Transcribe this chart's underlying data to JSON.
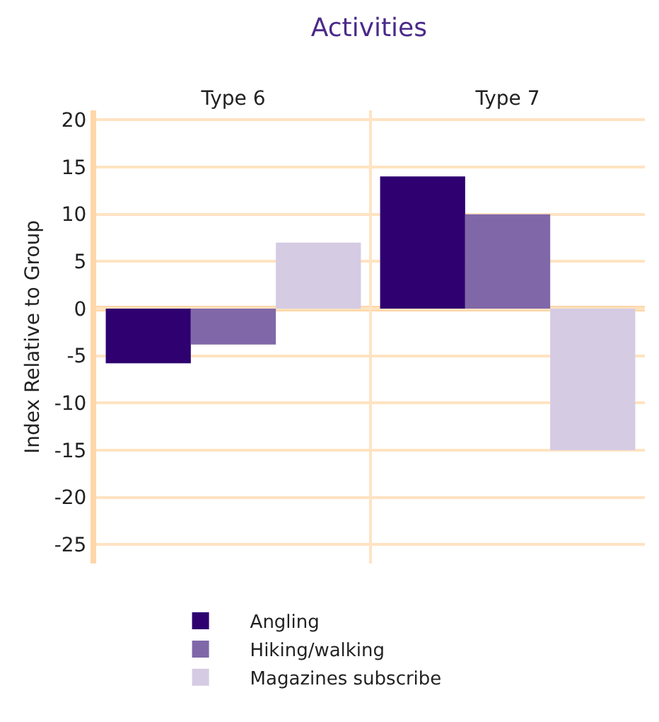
{
  "chart_data": {
    "type": "bar",
    "title": "Activities",
    "ylabel": "Index Relative to Group",
    "categories": [
      "Type 6",
      "Type 7"
    ],
    "series": [
      {
        "name": "Angling",
        "color": "#2e0070",
        "values": [
          -5.8,
          14
        ]
      },
      {
        "name": "Hiking/walking",
        "color": "#8068a8",
        "values": [
          -3.8,
          10
        ]
      },
      {
        "name": "Magazines subscribe",
        "color": "#d5cbe3",
        "values": [
          7,
          -15
        ]
      }
    ],
    "ylim": [
      -27,
      21
    ],
    "yticks": [
      -25,
      -20,
      -15,
      -10,
      -5,
      0,
      5,
      10,
      15,
      20
    ],
    "grid": true,
    "legend": "bottom",
    "ref_lines": [
      {
        "axis": "y",
        "value": 0,
        "color": "#ffd7a8"
      }
    ]
  }
}
